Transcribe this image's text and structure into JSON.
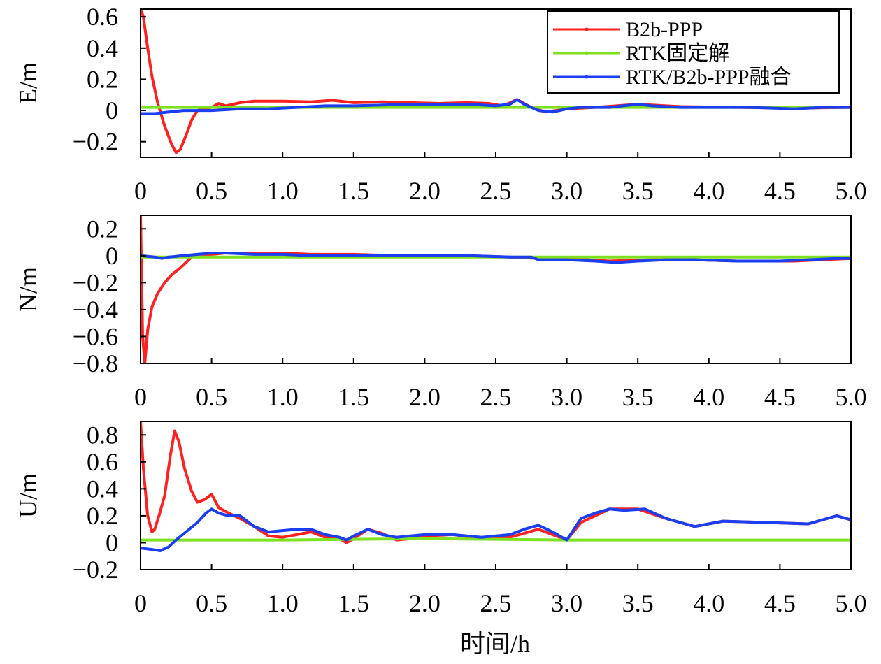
{
  "chart_data": [
    {
      "type": "line",
      "ylabel": "E/m",
      "xlim": [
        0,
        5.0
      ],
      "ylim": [
        -0.3,
        0.65
      ],
      "xticks": [
        "0",
        "0.5",
        "1.0",
        "1.5",
        "2.0",
        "2.5",
        "3.0",
        "3.5",
        "4.0",
        "4.5",
        "5.0"
      ],
      "yticks": [
        {
          "value": 0.6,
          "label": "0.6"
        },
        {
          "value": 0.4,
          "label": "0.4"
        },
        {
          "value": 0.2,
          "label": "0.2"
        },
        {
          "value": 0,
          "label": "0"
        },
        {
          "value": -0.2,
          "label": "−0.2"
        }
      ],
      "legend": {
        "position": "top-right",
        "entries": [
          {
            "name": "B2b-PPP",
            "color": "#ff2020"
          },
          {
            "name": "RTK固定解",
            "color": "#7ee021"
          },
          {
            "name": "RTK/B2b-PPP融合",
            "color": "#1a3ef0"
          }
        ]
      },
      "series": [
        {
          "name": "B2b-PPP",
          "color": "#ff2020",
          "x": [
            0,
            0.02,
            0.05,
            0.08,
            0.12,
            0.17,
            0.22,
            0.25,
            0.28,
            0.32,
            0.36,
            0.4,
            0.45,
            0.5,
            0.55,
            0.6,
            0.7,
            0.8,
            1.0,
            1.2,
            1.35,
            1.5,
            1.7,
            1.9,
            2.1,
            2.3,
            2.45,
            2.55,
            2.65,
            2.75,
            2.85,
            3.0,
            3.2,
            3.5,
            3.8,
            4.2,
            4.6,
            5.0
          ],
          "y": [
            0.65,
            0.6,
            0.4,
            0.22,
            0.05,
            -0.1,
            -0.22,
            -0.27,
            -0.25,
            -0.16,
            -0.06,
            0.0,
            0.01,
            0.02,
            0.045,
            0.03,
            0.05,
            0.06,
            0.06,
            0.055,
            0.065,
            0.05,
            0.055,
            0.05,
            0.045,
            0.05,
            0.045,
            0.03,
            0.07,
            0.02,
            -0.01,
            0.01,
            0.02,
            0.04,
            0.025,
            0.02,
            0.015,
            0.02
          ]
        },
        {
          "name": "RTK固定解",
          "color": "#7ee021",
          "x": [
            0,
            1.0,
            2.0,
            3.0,
            4.0,
            5.0
          ],
          "y": [
            0.02,
            0.02,
            0.02,
            0.02,
            0.02,
            0.02
          ]
        },
        {
          "name": "RTK/B2b-PPP融合",
          "color": "#1a3ef0",
          "x": [
            0,
            0.1,
            0.2,
            0.3,
            0.4,
            0.5,
            0.7,
            0.9,
            1.1,
            1.3,
            1.5,
            1.7,
            1.9,
            2.1,
            2.3,
            2.5,
            2.6,
            2.65,
            2.7,
            2.8,
            2.9,
            3.0,
            3.1,
            3.2,
            3.3,
            3.5,
            3.6,
            3.8,
            4.0,
            4.3,
            4.6,
            4.8,
            5.0
          ],
          "y": [
            -0.02,
            -0.02,
            -0.01,
            0.0,
            0.0,
            0.0,
            0.01,
            0.01,
            0.02,
            0.03,
            0.03,
            0.035,
            0.04,
            0.04,
            0.04,
            0.03,
            0.04,
            0.07,
            0.04,
            0.0,
            -0.01,
            0.01,
            0.02,
            0.02,
            0.02,
            0.04,
            0.03,
            0.02,
            0.02,
            0.02,
            0.01,
            0.02,
            0.02
          ]
        }
      ]
    },
    {
      "type": "line",
      "ylabel": "N/m",
      "xlim": [
        0,
        5.0
      ],
      "ylim": [
        -0.8,
        0.3
      ],
      "xticks": [
        "0",
        "0.5",
        "1.0",
        "1.5",
        "2.0",
        "2.5",
        "3.0",
        "3.5",
        "4.0",
        "4.5",
        "5.0"
      ],
      "yticks": [
        {
          "value": 0.2,
          "label": "0.2"
        },
        {
          "value": 0,
          "label": "0"
        },
        {
          "value": -0.2,
          "label": "−0.2"
        },
        {
          "value": -0.4,
          "label": "−0.4"
        },
        {
          "value": -0.6,
          "label": "−0.6"
        },
        {
          "value": -0.8,
          "label": "−0.8"
        }
      ],
      "series": [
        {
          "name": "B2b-PPP",
          "color": "#ff2020",
          "x": [
            0,
            0.005,
            0.015,
            0.03,
            0.05,
            0.08,
            0.12,
            0.17,
            0.22,
            0.27,
            0.32,
            0.36,
            0.4,
            0.5,
            0.6,
            0.8,
            1.0,
            1.2,
            1.5,
            1.8,
            2.0,
            2.3,
            2.6,
            2.8,
            3.0,
            3.3,
            3.6,
            3.9,
            4.2,
            4.6,
            5.0
          ],
          "y": [
            0.3,
            0.0,
            -0.6,
            -0.8,
            -0.55,
            -0.38,
            -0.28,
            -0.2,
            -0.14,
            -0.1,
            -0.05,
            -0.01,
            0.0,
            0.01,
            0.02,
            0.015,
            0.02,
            0.01,
            0.01,
            0.0,
            0.0,
            0.0,
            -0.01,
            -0.02,
            -0.02,
            -0.04,
            -0.03,
            -0.03,
            -0.04,
            -0.04,
            -0.02
          ]
        },
        {
          "name": "RTK固定解",
          "color": "#7ee021",
          "x": [
            0,
            1.0,
            2.0,
            3.0,
            4.0,
            5.0
          ],
          "y": [
            -0.01,
            -0.01,
            -0.01,
            -0.01,
            -0.01,
            -0.01
          ]
        },
        {
          "name": "RTK/B2b-PPP融合",
          "color": "#1a3ef0",
          "x": [
            0,
            0.1,
            0.15,
            0.2,
            0.3,
            0.4,
            0.5,
            0.6,
            0.8,
            1.0,
            1.2,
            1.5,
            1.8,
            2.0,
            2.3,
            2.6,
            2.75,
            2.8,
            3.0,
            3.2,
            3.35,
            3.5,
            3.7,
            3.9,
            4.2,
            4.5,
            4.7,
            4.9,
            5.0
          ],
          "y": [
            0.0,
            -0.01,
            -0.02,
            -0.01,
            0.0,
            0.01,
            0.02,
            0.02,
            0.01,
            0.01,
            0.0,
            0.0,
            0.0,
            0.0,
            0.0,
            -0.01,
            -0.01,
            -0.03,
            -0.03,
            -0.04,
            -0.05,
            -0.04,
            -0.03,
            -0.03,
            -0.04,
            -0.04,
            -0.03,
            -0.02,
            -0.02
          ]
        }
      ]
    },
    {
      "type": "line",
      "ylabel": "U/m",
      "xlabel": "时间/h",
      "xlim": [
        0,
        5.0
      ],
      "ylim": [
        -0.2,
        0.9
      ],
      "xticks": [
        "0",
        "0.5",
        "1.0",
        "1.5",
        "2.0",
        "2.5",
        "3.0",
        "3.5",
        "4.0",
        "4.5",
        "5.0"
      ],
      "yticks": [
        {
          "value": 0.8,
          "label": "0.8"
        },
        {
          "value": 0.6,
          "label": "0.6"
        },
        {
          "value": 0.4,
          "label": "0.4"
        },
        {
          "value": 0.2,
          "label": "0.2"
        },
        {
          "value": 0,
          "label": "0"
        },
        {
          "value": -0.2,
          "label": "−0.2"
        }
      ],
      "series": [
        {
          "name": "B2b-PPP",
          "color": "#ff2020",
          "x": [
            0,
            0.02,
            0.05,
            0.08,
            0.1,
            0.13,
            0.17,
            0.21,
            0.24,
            0.27,
            0.31,
            0.36,
            0.4,
            0.45,
            0.5,
            0.55,
            0.62,
            0.7,
            0.8,
            0.9,
            1.0,
            1.1,
            1.2,
            1.3,
            1.4,
            1.45,
            1.5,
            1.6,
            1.7,
            1.8,
            1.9,
            2.0,
            2.2,
            2.4,
            2.6,
            2.8,
            3.0,
            3.1,
            3.2,
            3.3,
            3.5,
            3.7,
            3.9,
            4.1,
            4.4,
            4.7,
            4.9,
            5.0
          ],
          "y": [
            0.9,
            0.55,
            0.2,
            0.08,
            0.1,
            0.2,
            0.35,
            0.65,
            0.83,
            0.75,
            0.55,
            0.38,
            0.3,
            0.32,
            0.36,
            0.26,
            0.22,
            0.18,
            0.12,
            0.05,
            0.04,
            0.06,
            0.08,
            0.04,
            0.03,
            0.0,
            0.03,
            0.1,
            0.07,
            0.02,
            0.03,
            0.05,
            0.06,
            0.03,
            0.04,
            0.1,
            0.02,
            0.15,
            0.2,
            0.25,
            0.25,
            0.18,
            0.12,
            0.16,
            0.15,
            0.14,
            0.2,
            0.17
          ]
        },
        {
          "name": "RTK固定解",
          "color": "#7ee021",
          "x": [
            0,
            1.0,
            2.0,
            3.0,
            4.0,
            5.0
          ],
          "y": [
            0.02,
            0.02,
            0.03,
            0.02,
            0.02,
            0.02
          ]
        },
        {
          "name": "RTK/B2b-PPP融合",
          "color": "#1a3ef0",
          "x": [
            0,
            0.08,
            0.14,
            0.2,
            0.25,
            0.32,
            0.4,
            0.46,
            0.5,
            0.55,
            0.62,
            0.7,
            0.8,
            0.9,
            1.0,
            1.1,
            1.2,
            1.3,
            1.4,
            1.45,
            1.5,
            1.6,
            1.7,
            1.8,
            1.9,
            2.0,
            2.2,
            2.4,
            2.6,
            2.7,
            2.8,
            2.9,
            3.0,
            3.05,
            3.1,
            3.2,
            3.3,
            3.4,
            3.55,
            3.7,
            3.9,
            4.1,
            4.4,
            4.7,
            4.9,
            5.0
          ],
          "y": [
            -0.04,
            -0.05,
            -0.06,
            -0.03,
            0.02,
            0.08,
            0.15,
            0.22,
            0.25,
            0.22,
            0.2,
            0.2,
            0.12,
            0.08,
            0.09,
            0.1,
            0.1,
            0.06,
            0.04,
            0.02,
            0.05,
            0.1,
            0.06,
            0.04,
            0.05,
            0.06,
            0.06,
            0.04,
            0.06,
            0.1,
            0.13,
            0.08,
            0.02,
            0.1,
            0.18,
            0.22,
            0.25,
            0.24,
            0.25,
            0.18,
            0.12,
            0.16,
            0.15,
            0.14,
            0.2,
            0.17
          ]
        }
      ]
    }
  ]
}
